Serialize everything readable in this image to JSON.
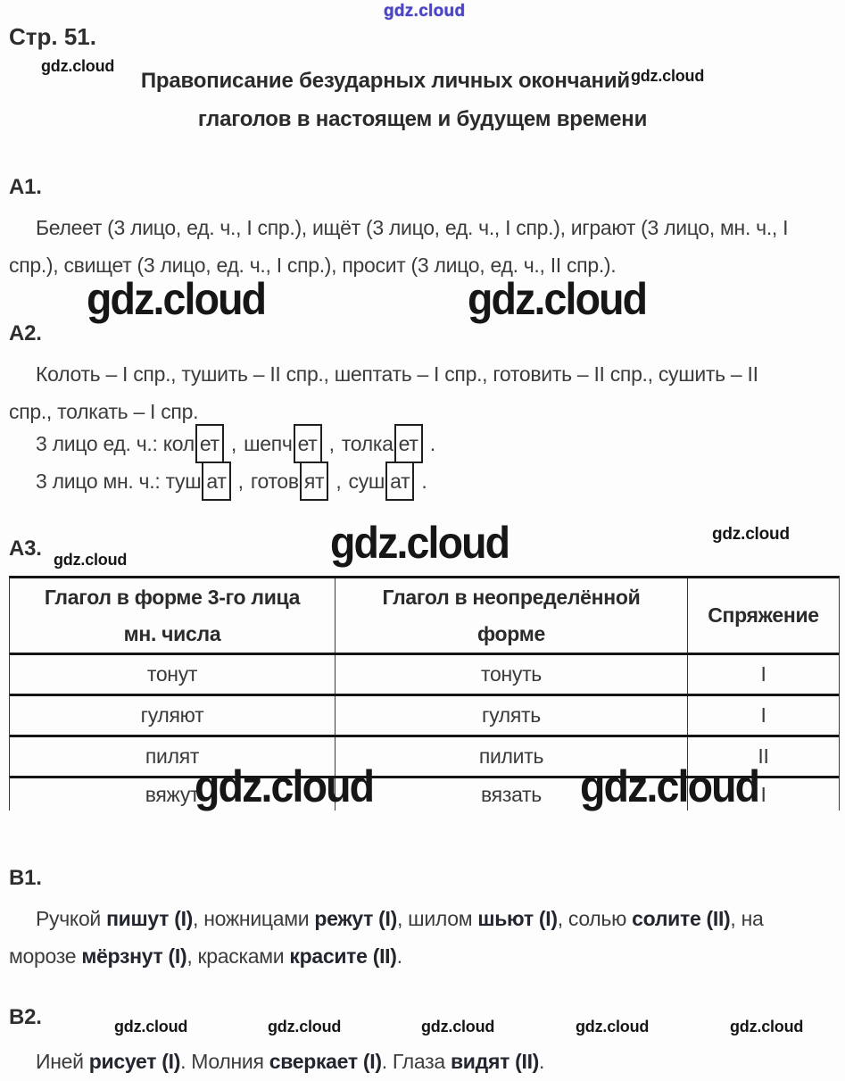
{
  "palette": {
    "text": "#3c3c3c",
    "bold_text": "#23262f",
    "watermark_black": "#161616",
    "watermark_blue": "#4a44c8",
    "table_border": "#151515"
  },
  "watermark_text": "gdz.cloud",
  "page": {
    "header": "Стр. 51."
  },
  "title": {
    "line1": "Правописание безударных личных окончаний",
    "line2": "глаголов в настоящем и будущем времени"
  },
  "a1": {
    "label": "A1.",
    "lines": [
      "Белеет (3 лицо, ед. ч., I спр.), ищёт (3 лицо, ед. ч., I спр.), играют (3 лицо, мн. ч., I",
      "спр.), свищет (3 лицо, ед. ч., I спр.), просит (3 лицо, ед. ч., II спр.)."
    ]
  },
  "a2": {
    "label": "A2.",
    "lines": [
      "Колоть – I спр., тушить – II спр., шептать – I спр., готовить – II спр., сушить – II",
      "спр., толкать – I спр."
    ],
    "singular": {
      "prefix": "3 лицо ед. ч.: ",
      "items": [
        {
          "stem": "кол",
          "ending": "ет"
        },
        {
          "stem": "шепч",
          "ending": "ет"
        },
        {
          "stem": "толка",
          "ending": "ет"
        }
      ]
    },
    "plural": {
      "prefix": "3 лицо мн. ч.: ",
      "items": [
        {
          "stem": "туш",
          "ending": "ат"
        },
        {
          "stem": "готов",
          "ending": "ят"
        },
        {
          "stem": "суш",
          "ending": "ат"
        }
      ]
    }
  },
  "a3": {
    "label": "A3.",
    "table": {
      "headers": [
        "Глагол в форме 3-го лица\nмн. числа",
        "Глагол в неопределённой\nформе",
        "Спряжение"
      ],
      "rows": [
        [
          "тонут",
          "тонуть",
          "I"
        ],
        [
          "гуляют",
          "гулять",
          "I"
        ],
        [
          "пилят",
          "пилить",
          "II"
        ],
        [
          "вяжут",
          "вязать",
          "I"
        ]
      ]
    }
  },
  "b1": {
    "label": "B1.",
    "lines": [
      [
        [
          "Ручкой ",
          0
        ],
        [
          "пишут (I)",
          1
        ],
        [
          ", ножницами ",
          0
        ],
        [
          "режут (I)",
          1
        ],
        [
          ", шилом ",
          0
        ],
        [
          "шьют (I)",
          1
        ],
        [
          ", солью ",
          0
        ],
        [
          "солите (II)",
          1
        ],
        [
          ", на",
          0
        ]
      ],
      [
        [
          "морозе ",
          0
        ],
        [
          "мёрзнут (I)",
          1
        ],
        [
          ", красками ",
          0
        ],
        [
          "красите (II)",
          1
        ],
        [
          ".",
          0
        ]
      ]
    ]
  },
  "b2": {
    "label": "B2.",
    "lines": [
      [
        [
          "Иней ",
          0
        ],
        [
          "рисует (I)",
          1
        ],
        [
          ". Молния ",
          0
        ],
        [
          "сверкает (I)",
          1
        ],
        [
          ". Глаза ",
          0
        ],
        [
          "видят (II)",
          1
        ],
        [
          ".",
          0
        ]
      ]
    ]
  }
}
